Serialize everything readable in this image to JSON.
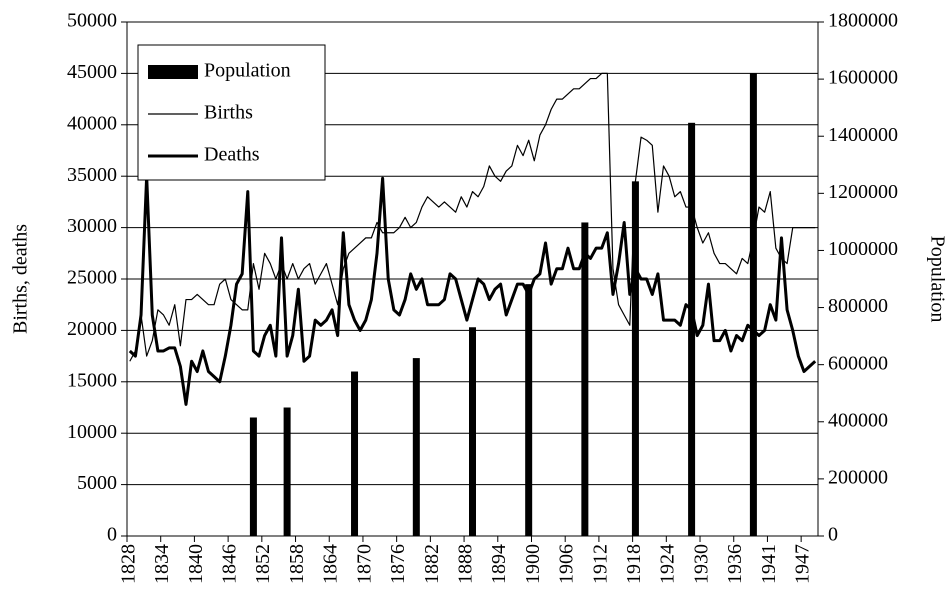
{
  "chart_data": {
    "type": "combo",
    "y_label": "Births, deaths",
    "y2_label": "Population",
    "categories": [
      "1828",
      null,
      null,
      null,
      null,
      null,
      "1834",
      null,
      null,
      null,
      null,
      null,
      "1840",
      null,
      null,
      null,
      null,
      null,
      "1846",
      null,
      null,
      null,
      null,
      null,
      "1852",
      null,
      null,
      null,
      null,
      null,
      "1858",
      null,
      null,
      null,
      null,
      null,
      "1864",
      null,
      null,
      null,
      null,
      null,
      "1870",
      null,
      null,
      null,
      null,
      null,
      "1876",
      null,
      null,
      null,
      null,
      null,
      "1882",
      null,
      null,
      null,
      null,
      null,
      "1888",
      null,
      null,
      null,
      null,
      null,
      "1894",
      null,
      null,
      null,
      null,
      null,
      "1900",
      null,
      null,
      null,
      null,
      null,
      "1906",
      null,
      null,
      null,
      null,
      null,
      "1912",
      null,
      null,
      null,
      null,
      null,
      "1918",
      null,
      null,
      null,
      null,
      null,
      "1924",
      null,
      null,
      null,
      null,
      null,
      "1930",
      null,
      null,
      null,
      null,
      null,
      "1936",
      null,
      null,
      null,
      null,
      null,
      "1941",
      null,
      null,
      null,
      null,
      null,
      "1947",
      null,
      null
    ],
    "series": [
      {
        "name": "Population",
        "type": "bar",
        "axis": "y2",
        "color": "#000000",
        "values": [
          null,
          null,
          null,
          null,
          null,
          null,
          null,
          null,
          null,
          null,
          null,
          null,
          null,
          null,
          null,
          null,
          null,
          null,
          null,
          null,
          null,
          null,
          415000,
          null,
          null,
          null,
          null,
          null,
          450000,
          null,
          null,
          null,
          null,
          null,
          null,
          null,
          null,
          null,
          null,
          null,
          576000,
          null,
          null,
          null,
          null,
          null,
          null,
          null,
          null,
          null,
          null,
          623000,
          null,
          null,
          null,
          null,
          null,
          null,
          null,
          null,
          null,
          731000,
          null,
          null,
          null,
          null,
          null,
          null,
          null,
          null,
          null,
          882000,
          null,
          null,
          null,
          null,
          null,
          null,
          null,
          null,
          null,
          1098000,
          null,
          null,
          null,
          null,
          null,
          null,
          null,
          null,
          1242000,
          null,
          null,
          null,
          null,
          null,
          null,
          null,
          null,
          null,
          1447000,
          null,
          null,
          null,
          null,
          null,
          null,
          null,
          null,
          null,
          null,
          1620000,
          null,
          null,
          null,
          null,
          null,
          null,
          null,
          null,
          null,
          null,
          null
        ]
      },
      {
        "name": "Births",
        "type": "line",
        "color": "#000000",
        "line_width": 1.2,
        "values": [
          17000,
          18000,
          21500,
          17500,
          19000,
          22000,
          21500,
          20500,
          22500,
          18500,
          23000,
          23000,
          23500,
          23000,
          22500,
          22500,
          24500,
          25000,
          23000,
          22500,
          22000,
          22000,
          26500,
          24000,
          27500,
          26500,
          25000,
          26500,
          25000,
          26500,
          25000,
          26000,
          26500,
          24500,
          25500,
          26500,
          24500,
          22500,
          26000,
          27500,
          28000,
          28500,
          29000,
          29000,
          30500,
          29500,
          29500,
          29500,
          30000,
          31000,
          30000,
          30500,
          32000,
          33000,
          32500,
          32000,
          32500,
          32000,
          31500,
          33000,
          32000,
          33500,
          33000,
          34000,
          36000,
          35000,
          34500,
          35500,
          36000,
          38000,
          37000,
          38500,
          36500,
          39000,
          40000,
          41500,
          42500,
          42500,
          43000,
          43500,
          43500,
          44000,
          44500,
          44500,
          45000,
          45000,
          26000,
          22500,
          21500,
          20500,
          34500,
          38800,
          38500,
          38000,
          31500,
          36000,
          35000,
          33000,
          33500,
          32000,
          32000,
          30000,
          28500,
          29500,
          27500,
          26500,
          26500,
          26000,
          25500,
          27000,
          26500,
          29000,
          32000,
          31500,
          33500,
          28000,
          27000,
          26500,
          30000,
          30000,
          30000,
          30000,
          30000
        ]
      },
      {
        "name": "Deaths",
        "type": "line",
        "color": "#000000",
        "line_width": 3,
        "values": [
          18000,
          17500,
          21500,
          35000,
          21500,
          18000,
          18000,
          18300,
          18300,
          16500,
          12800,
          17000,
          16000,
          18000,
          16000,
          15500,
          15000,
          17500,
          20500,
          24500,
          25500,
          33500,
          18000,
          17500,
          19500,
          20500,
          17500,
          29000,
          17500,
          19500,
          24000,
          17000,
          17500,
          21000,
          20500,
          21000,
          22000,
          19500,
          29500,
          22500,
          21000,
          20000,
          21000,
          23000,
          27500,
          34800,
          25000,
          22000,
          21500,
          23000,
          25500,
          24000,
          25000,
          22500,
          22500,
          22500,
          23000,
          25500,
          25000,
          23000,
          21000,
          23000,
          25000,
          24500,
          23000,
          24000,
          24500,
          21500,
          23000,
          24500,
          24500,
          23500,
          25000,
          25500,
          28500,
          24500,
          26000,
          26000,
          28000,
          26000,
          26000,
          27500,
          27000,
          28000,
          28000,
          29500,
          23500,
          26500,
          30500,
          23500,
          26000,
          25000,
          25000,
          23500,
          25500,
          21000,
          21000,
          21000,
          20500,
          22500,
          22000,
          19500,
          20500,
          24500,
          19000,
          19000,
          20000,
          18000,
          19500,
          19000,
          20500,
          20000,
          19500,
          20000,
          22500,
          21000,
          29000,
          22000,
          20000,
          17500,
          16000,
          16500,
          17000
        ]
      }
    ],
    "ylim": [
      0,
      50000
    ],
    "yticks": [
      0,
      5000,
      10000,
      15000,
      20000,
      25000,
      30000,
      35000,
      40000,
      45000,
      50000
    ],
    "y2lim": [
      0,
      1800000
    ],
    "y2ticks": [
      0,
      200000,
      400000,
      600000,
      800000,
      1000000,
      1200000,
      1400000,
      1600000,
      1800000
    ],
    "grid": true,
    "legend": "upper left"
  }
}
